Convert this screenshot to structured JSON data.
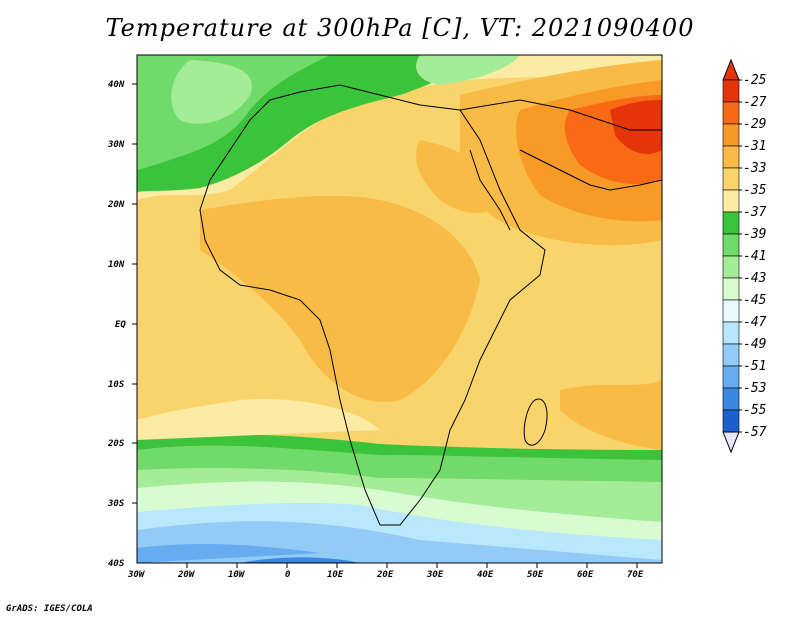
{
  "title": "Temperature at 300hPa [C], VT: 2021090400",
  "credit": "GrADS: IGES/COLA",
  "lat_labels": [
    "40N",
    "30N",
    "20N",
    "10N",
    "EQ",
    "10S",
    "20S",
    "30S",
    "40S"
  ],
  "lon_labels": [
    "30W",
    "20W",
    "10W",
    "0",
    "10E",
    "20E",
    "30E",
    "40E",
    "50E",
    "60E",
    "70E"
  ],
  "colorbar": {
    "labels": [
      "-25",
      "-27",
      "-29",
      "-31",
      "-33",
      "-35",
      "-37",
      "-39",
      "-41",
      "-43",
      "-45",
      "-47",
      "-49",
      "-51",
      "-53",
      "-55",
      "-57"
    ],
    "colors": [
      "#e5340a",
      "#f86a14",
      "#f89a26",
      "#f8bb46",
      "#f9d46c",
      "#fbeba4",
      "#3bc43b",
      "#70da6a",
      "#a4ec97",
      "#d9fbd2",
      "#e8fbff",
      "#b9e7fb",
      "#92cbf7",
      "#66acee",
      "#3a88e1",
      "#1d5fce",
      "#0f3cad",
      "#081a85",
      "#e6e6ff"
    ],
    "top_arrow_color": "#e5340a",
    "bottom_arrow_color": "#e6e6ff"
  }
}
